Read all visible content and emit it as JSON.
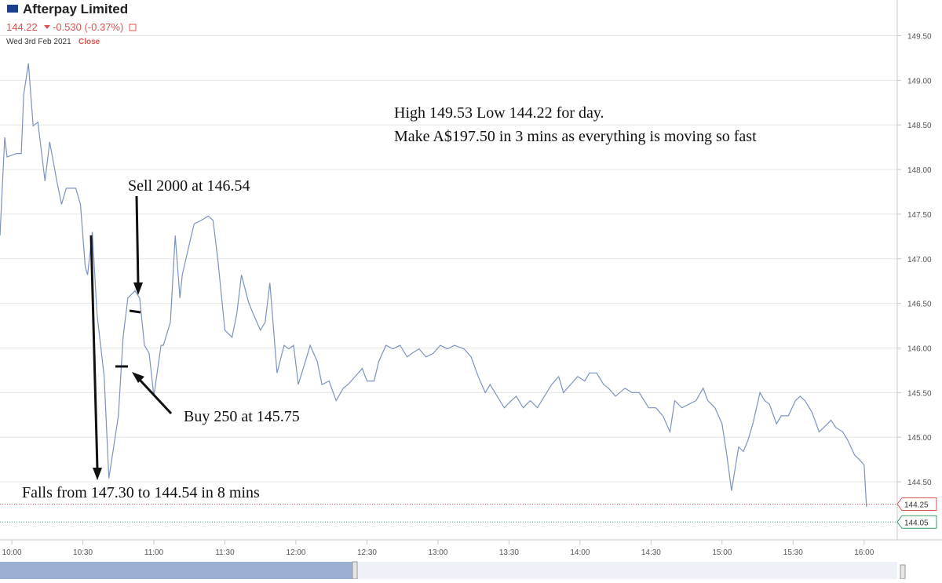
{
  "chart_data": {
    "type": "line",
    "title": "Afterpay Limited",
    "price": "144.22",
    "change": "-0.530 (-0.37%)",
    "date": "Wed 3rd Feb 2021",
    "status": "Close",
    "annotations": [
      "High 149.53 Low 144.22 for day.",
      "Make A$197.50 in 3 mins as everything is moving so fast",
      "Sell 2000 at 146.54",
      "Buy 250 at 145.75",
      "Falls from 147.30 to 144.54 in 8 mins"
    ],
    "x": [
      "09:55",
      "09:57",
      "09:58",
      "10:02",
      "10:04",
      "10:05",
      "10:07",
      "10:09",
      "10:11",
      "10:14",
      "10:16",
      "10:19",
      "10:21",
      "10:23",
      "10:27",
      "10:29",
      "10:31",
      "10:32",
      "10:34",
      "10:36",
      "10:39",
      "10:41",
      "10:43",
      "10:45",
      "10:47",
      "10:49",
      "10:52",
      "10:54",
      "10:56",
      "10:58",
      "11:00",
      "11:03",
      "11:04",
      "11:07",
      "11:09",
      "11:11",
      "11:12",
      "11:15",
      "11:17",
      "11:20",
      "11:23",
      "11:25",
      "11:27",
      "11:30",
      "11:33",
      "11:35",
      "11:37",
      "11:40",
      "11:42",
      "11:45",
      "11:47",
      "11:49",
      "11:52",
      "11:55",
      "11:57",
      "11:59",
      "12:01",
      "12:04",
      "12:06",
      "12:09",
      "12:11",
      "12:14",
      "12:17",
      "12:20",
      "12:22",
      "12:25",
      "12:28",
      "12:30",
      "12:33",
      "12:35",
      "12:38",
      "12:41",
      "12:44",
      "12:47",
      "12:49",
      "12:52",
      "12:55",
      "12:58",
      "13:01",
      "13:04",
      "13:07",
      "13:11",
      "13:14",
      "13:17",
      "13:20",
      "13:22",
      "13:25",
      "13:28",
      "13:31",
      "13:33",
      "13:36",
      "13:39",
      "13:42",
      "13:45",
      "13:48",
      "13:51",
      "13:53",
      "13:56",
      "13:59",
      "14:02",
      "14:04",
      "14:07",
      "14:10",
      "14:12",
      "14:15",
      "14:19",
      "14:22",
      "14:25",
      "14:29",
      "14:32",
      "14:35",
      "14:38",
      "14:40",
      "14:43",
      "14:46",
      "14:49",
      "14:52",
      "14:54",
      "14:57",
      "15:00",
      "15:02",
      "15:04",
      "15:07",
      "15:09",
      "15:11",
      "15:13",
      "15:16",
      "15:18",
      "15:20",
      "15:23",
      "15:25",
      "15:28",
      "15:31",
      "15:33",
      "15:35",
      "15:38",
      "15:41",
      "15:43",
      "15:46",
      "15:48",
      "15:51",
      "15:53",
      "15:56",
      "15:58",
      "16:00",
      "16:01"
    ],
    "series": [
      {
        "name": "Afterpay Limited",
        "color": "#7b93c0",
        "values": [
          147.26,
          148.36,
          148.14,
          148.18,
          148.18,
          148.84,
          149.19,
          148.49,
          148.53,
          147.87,
          148.31,
          147.87,
          147.61,
          147.79,
          147.79,
          147.61,
          146.91,
          146.82,
          147.3,
          146.38,
          145.68,
          144.54,
          144.89,
          145.24,
          146.12,
          146.56,
          146.64,
          146.56,
          146.03,
          145.94,
          145.46,
          146.03,
          146.03,
          146.29,
          147.26,
          146.56,
          146.82,
          147.17,
          147.39,
          147.43,
          147.48,
          147.43,
          146.99,
          146.2,
          146.12,
          146.38,
          146.82,
          146.51,
          146.38,
          146.2,
          146.29,
          146.73,
          145.72,
          146.03,
          145.99,
          146.03,
          145.59,
          145.85,
          146.03,
          145.85,
          145.59,
          145.63,
          145.41,
          145.55,
          145.59,
          145.68,
          145.77,
          145.63,
          145.63,
          145.85,
          146.03,
          145.99,
          146.03,
          145.9,
          145.94,
          145.99,
          145.9,
          145.94,
          146.03,
          145.99,
          146.03,
          145.99,
          145.9,
          145.68,
          145.5,
          145.59,
          145.46,
          145.33,
          145.41,
          145.46,
          145.33,
          145.41,
          145.33,
          145.46,
          145.59,
          145.68,
          145.5,
          145.59,
          145.68,
          145.63,
          145.72,
          145.72,
          145.59,
          145.55,
          145.46,
          145.55,
          145.5,
          145.5,
          145.33,
          145.33,
          145.24,
          145.06,
          145.41,
          145.33,
          145.37,
          145.41,
          145.55,
          145.41,
          145.33,
          145.15,
          144.8,
          144.4,
          144.89,
          144.84,
          144.97,
          145.15,
          145.5,
          145.41,
          145.37,
          145.15,
          145.24,
          145.24,
          145.41,
          145.46,
          145.41,
          145.28,
          145.06,
          145.11,
          145.19,
          145.11,
          145.06,
          144.97,
          144.8,
          144.75,
          144.69,
          144.22
        ]
      }
    ],
    "xlim": [
      "09:55",
      "16:14"
    ],
    "xticks": [
      "10:00",
      "10:30",
      "11:00",
      "11:30",
      "12:00",
      "12:30",
      "13:00",
      "13:30",
      "14:00",
      "14:30",
      "15:00",
      "15:30",
      "16:00"
    ],
    "ylim": [
      143.85,
      149.9
    ],
    "yticks": [
      {
        "value": 144.5,
        "label": "144.50"
      },
      {
        "value": 145,
        "label": "145.00"
      },
      {
        "value": 145.5,
        "label": "145.50"
      },
      {
        "value": 146,
        "label": "146.00"
      },
      {
        "value": 146.5,
        "label": "146.50"
      },
      {
        "value": 147,
        "label": "147.00"
      },
      {
        "value": 147.5,
        "label": "147.50"
      },
      {
        "value": 148,
        "label": "148.00"
      },
      {
        "value": 148.5,
        "label": "148.50"
      },
      {
        "value": 149,
        "label": "149.00"
      },
      {
        "value": 149.5,
        "label": "149.50"
      }
    ],
    "price_markers": [
      {
        "value": 144.25,
        "color": "#d9534f"
      },
      {
        "value": 144.05,
        "color": "#3c9a6b"
      }
    ],
    "grid": true
  }
}
